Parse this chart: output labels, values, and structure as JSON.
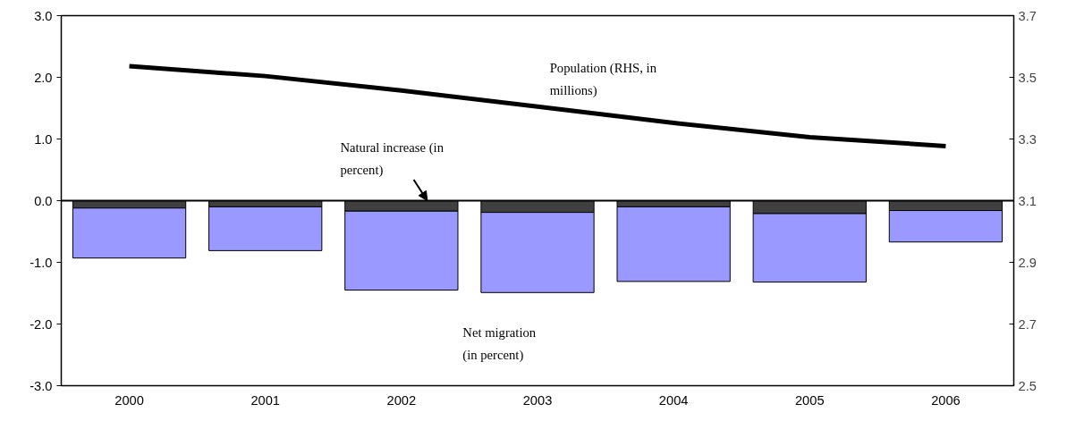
{
  "chart_data": {
    "type": "bar",
    "stacked": true,
    "categories": [
      "2000",
      "2001",
      "2002",
      "2003",
      "2004",
      "2005",
      "2006"
    ],
    "series": [
      {
        "name": "Natural increase (in percent)",
        "color": "#404040",
        "values": [
          -0.12,
          -0.1,
          -0.17,
          -0.19,
          -0.1,
          -0.21,
          -0.16
        ]
      },
      {
        "name": "Net migration (in percent)",
        "color": "#9999ff",
        "values": [
          -0.81,
          -0.71,
          -1.28,
          -1.3,
          -1.21,
          -1.11,
          -0.51
        ]
      },
      {
        "name": "Population (RHS, in millions)",
        "type": "line",
        "axis": "y2",
        "color": "#000000",
        "values": [
          3.536,
          3.504,
          3.457,
          3.405,
          3.352,
          3.306,
          3.277
        ]
      }
    ],
    "ylim": [
      -3.0,
      3.0
    ],
    "yticks": [
      {
        "value": -3,
        "label": "-3.0"
      },
      {
        "value": -2,
        "label": "-2.0"
      },
      {
        "value": -1,
        "label": "-1.0"
      },
      {
        "value": 0,
        "label": "0.0"
      },
      {
        "value": 1,
        "label": "1.0"
      },
      {
        "value": 2,
        "label": "2.0"
      },
      {
        "value": 3,
        "label": "3.0"
      }
    ],
    "y2lim": [
      2.5,
      3.7
    ],
    "y2ticks": [
      2.5,
      2.7,
      2.9,
      3.1,
      3.3,
      3.5,
      3.7
    ],
    "ref_lines": [
      {
        "axis": "y",
        "value": 0,
        "color": "#000000"
      }
    ],
    "grid": false,
    "marker": "none",
    "line_style": "solid"
  }
}
